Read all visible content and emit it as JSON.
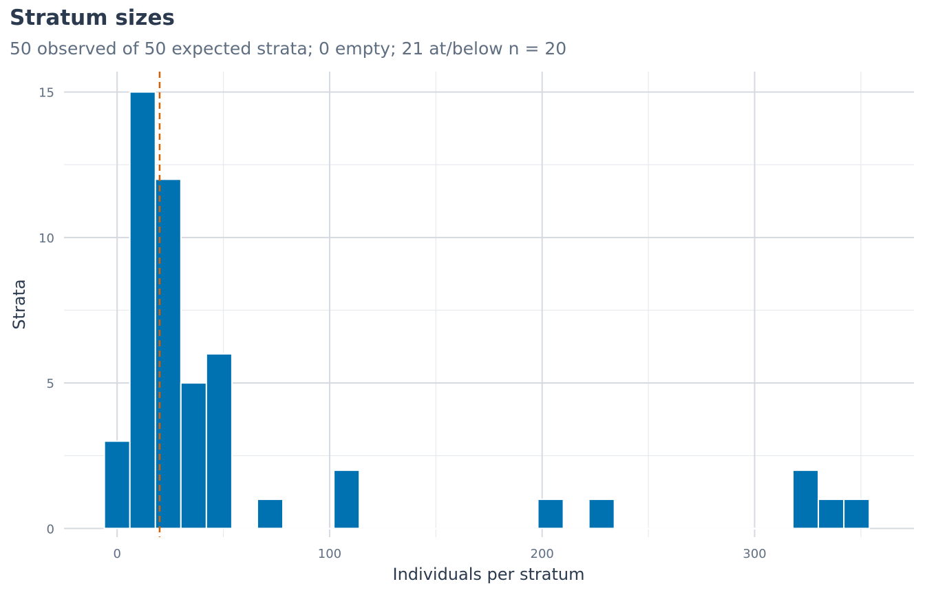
{
  "colors": {
    "bar": "#0072b2",
    "threshold": "#d55e00",
    "grid_major": "#d5dae1",
    "grid_minor": "#e6e9ee"
  },
  "chart_data": {
    "type": "bar",
    "title": "Stratum sizes",
    "subtitle": "50 observed of 50 expected strata; 0 empty; 21 at/below n = 20",
    "xlabel": "Individuals per stratum",
    "ylabel": "Strata",
    "xlim": [
      -25,
      375
    ],
    "ylim": [
      -0.3,
      15.7
    ],
    "x_ticks": [
      0,
      100,
      200,
      300
    ],
    "y_ticks": [
      0,
      5,
      10,
      15
    ],
    "bin_width": 12,
    "bins": [
      {
        "x": 0,
        "count": 3
      },
      {
        "x": 12,
        "count": 15
      },
      {
        "x": 24,
        "count": 12
      },
      {
        "x": 36,
        "count": 5
      },
      {
        "x": 48,
        "count": 6
      },
      {
        "x": 60,
        "count": 0
      },
      {
        "x": 72,
        "count": 1
      },
      {
        "x": 84,
        "count": 0
      },
      {
        "x": 96,
        "count": 0
      },
      {
        "x": 108,
        "count": 2
      },
      {
        "x": 120,
        "count": 0
      },
      {
        "x": 132,
        "count": 0
      },
      {
        "x": 144,
        "count": 0
      },
      {
        "x": 156,
        "count": 0
      },
      {
        "x": 168,
        "count": 0
      },
      {
        "x": 180,
        "count": 0
      },
      {
        "x": 192,
        "count": 0
      },
      {
        "x": 204,
        "count": 1
      },
      {
        "x": 216,
        "count": 0
      },
      {
        "x": 228,
        "count": 1
      },
      {
        "x": 240,
        "count": 0
      },
      {
        "x": 252,
        "count": 0
      },
      {
        "x": 264,
        "count": 0
      },
      {
        "x": 276,
        "count": 0
      },
      {
        "x": 288,
        "count": 0
      },
      {
        "x": 300,
        "count": 0
      },
      {
        "x": 312,
        "count": 0
      },
      {
        "x": 324,
        "count": 2
      },
      {
        "x": 336,
        "count": 1
      },
      {
        "x": 348,
        "count": 1
      }
    ],
    "threshold": {
      "x": 20
    },
    "grid": true
  }
}
